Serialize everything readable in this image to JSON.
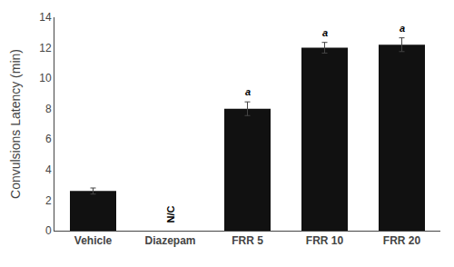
{
  "chart_data": {
    "type": "bar",
    "categories": [
      "Vehicle",
      "Diazepam",
      "FRR 5",
      "FRR 10",
      "FRR 20"
    ],
    "values": [
      2.6,
      null,
      8.0,
      12.0,
      12.2
    ],
    "errors": [
      0.2,
      null,
      0.45,
      0.35,
      0.45
    ],
    "color": "#111111",
    "ylabel": "Convulsions Latency (min)",
    "ylim": [
      0,
      14
    ],
    "yticks": [
      0,
      2,
      4,
      6,
      8,
      10,
      12,
      14
    ],
    "annotations": [
      null,
      "N/C",
      "a",
      "a",
      "a"
    ],
    "grid": false
  }
}
